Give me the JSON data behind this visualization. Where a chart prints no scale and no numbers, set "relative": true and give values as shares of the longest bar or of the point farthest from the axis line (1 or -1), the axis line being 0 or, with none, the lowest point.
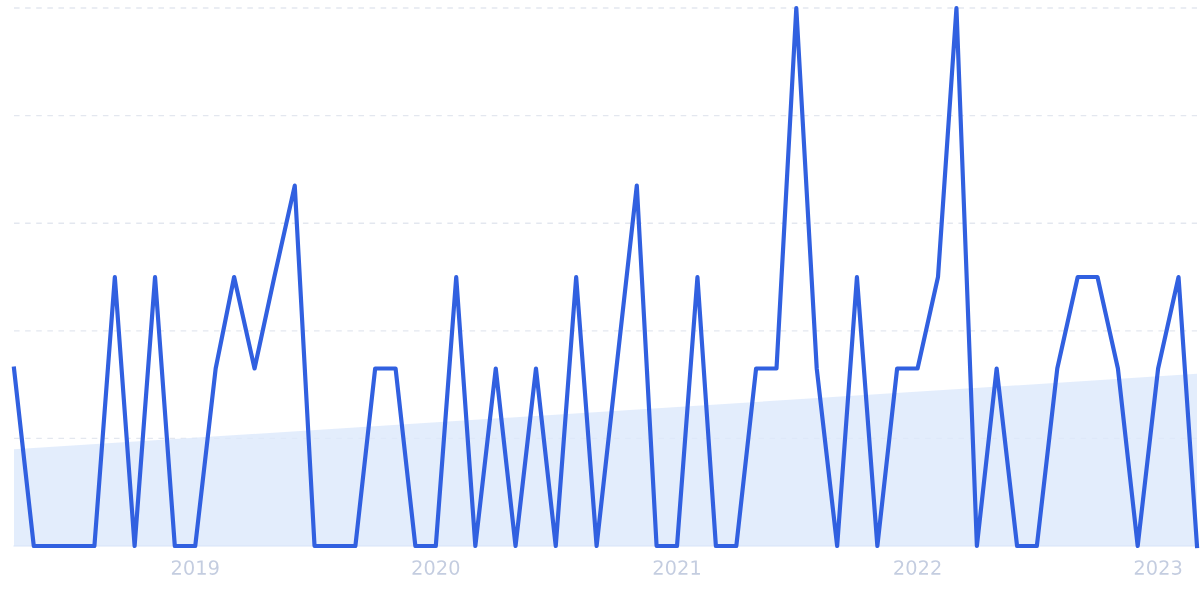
{
  "chart_data": {
    "type": "line",
    "relative": true,
    "grid": "y",
    "legend": false,
    "marker": "none",
    "line_style": "solid",
    "xlim": [
      "2018-04",
      "2023-03"
    ],
    "xticks": [
      {
        "value": "2019-01",
        "label": "2019"
      },
      {
        "value": "2020-01",
        "label": "2020"
      },
      {
        "value": "2021-01",
        "label": "2021"
      },
      {
        "value": "2022-01",
        "label": "2022"
      },
      {
        "value": "2023-01",
        "label": "2023"
      }
    ],
    "x": [
      "2018-04",
      "2018-05",
      "2018-06",
      "2018-07",
      "2018-08",
      "2018-09",
      "2018-10",
      "2018-11",
      "2018-12",
      "2019-01",
      "2019-02",
      "2019-03",
      "2019-04",
      "2019-05",
      "2019-06",
      "2019-07",
      "2019-08",
      "2019-09",
      "2019-10",
      "2019-11",
      "2019-12",
      "2020-01",
      "2020-02",
      "2020-03",
      "2020-04",
      "2020-05",
      "2020-06",
      "2020-07",
      "2020-08",
      "2020-09",
      "2020-10",
      "2020-11",
      "2020-12",
      "2021-01",
      "2021-02",
      "2021-03",
      "2021-04",
      "2021-05",
      "2021-06",
      "2021-07",
      "2021-08",
      "2021-09",
      "2021-10",
      "2021-11",
      "2021-12",
      "2022-01",
      "2022-02",
      "2022-03",
      "2022-04",
      "2022-05",
      "2022-06",
      "2022-07",
      "2022-08",
      "2022-09",
      "2022-10",
      "2022-11",
      "2022-12",
      "2023-01",
      "2023-02",
      "2023-03"
    ],
    "series": [
      {
        "color": "#3160e0",
        "values": [
          0.33,
          0,
          0,
          0,
          0,
          0.5,
          0,
          0.5,
          0,
          0,
          0.33,
          0.5,
          0.33,
          0.5,
          0.67,
          0,
          0,
          0,
          0.33,
          0.33,
          0,
          0,
          0.5,
          0,
          0.33,
          0,
          0.33,
          0,
          0.5,
          0,
          0.33,
          0.67,
          0,
          0,
          0.5,
          0,
          0,
          0.33,
          0.33,
          1,
          0.33,
          0,
          0.5,
          0,
          0.33,
          0.33,
          0.5,
          1,
          0,
          0.33,
          0,
          0,
          0.33,
          0.5,
          0.5,
          0.33,
          0,
          0.33,
          0.5,
          0
        ]
      },
      {
        "type": "area",
        "color": "#dce9fb",
        "x": [
          "2018-04",
          "2023-03"
        ],
        "values": [
          0.18,
          0.32
        ]
      }
    ]
  }
}
